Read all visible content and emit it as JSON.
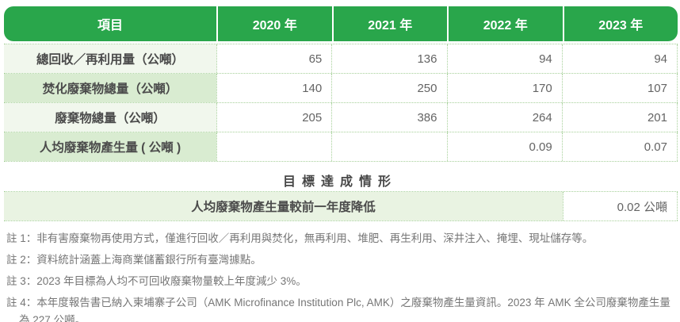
{
  "colors": {
    "accent_green": "#29a64b",
    "row_light": "#f1f7ed",
    "row_green": "#d9ecd1",
    "goal_row_bg": "#e9f3e2",
    "dotted_border": "#a6d099"
  },
  "table": {
    "header": {
      "item_label": "項目",
      "years": [
        "2020 年",
        "2021 年",
        "2022 年",
        "2023 年"
      ]
    },
    "rows": [
      {
        "label": "總回收／再利用量（公噸）",
        "values": [
          "65",
          "136",
          "94",
          "94"
        ]
      },
      {
        "label": "焚化廢棄物總量（公噸）",
        "values": [
          "140",
          "250",
          "170",
          "107"
        ]
      },
      {
        "label": "廢棄物總量（公噸）",
        "values": [
          "205",
          "386",
          "264",
          "201"
        ]
      },
      {
        "label": "人均廢棄物產生量 ( 公噸 )",
        "values": [
          "",
          "",
          "0.09",
          "0.07"
        ]
      }
    ]
  },
  "goal": {
    "section_title": "目標達成情形",
    "row_label": "人均廢棄物產生量較前一年度降低",
    "row_value": "0.02 公噸"
  },
  "notes": [
    "註 1：非有害廢棄物再使用方式，僅進行回收／再利用與焚化，無再利用、堆肥、再生利用、深井注入、掩埋、現址儲存等。",
    "註 2：資料統計涵蓋上海商業儲蓄銀行所有臺灣據點。",
    "註 3：2023 年目標為人均不可回收廢棄物量較上年度減少 3%。",
    "註 4：本年度報告書已納入柬埔寨子公司（AMK Microfinance Institution Plc, AMK）之廢棄物產生量資訊。2023 年 AMK 全公司廢棄物產生量為 227 公噸。"
  ]
}
